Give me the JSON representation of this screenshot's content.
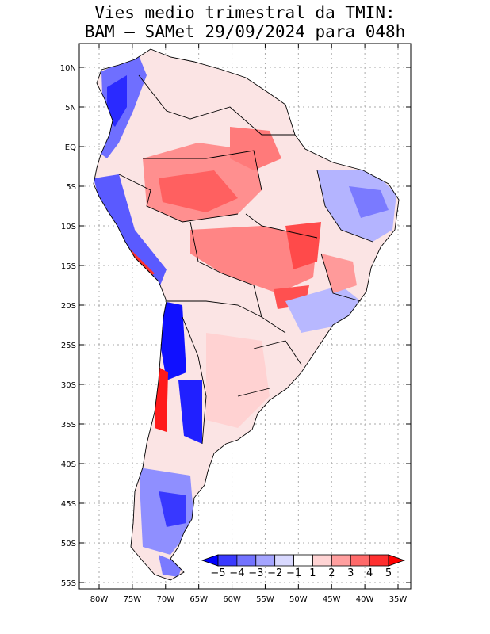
{
  "title": {
    "line1": "Vies medio trimestral da TMIN:",
    "line2": "BAM – SAMet 29/09/2024  para 048h"
  },
  "lat_ticks": [
    "10N",
    "5N",
    "EQ",
    "5S",
    "10S",
    "15S",
    "20S",
    "25S",
    "30S",
    "35S",
    "40S",
    "45S",
    "50S",
    "55S"
  ],
  "lon_ticks": [
    "80W",
    "75W",
    "70W",
    "65W",
    "60W",
    "55W",
    "50W",
    "45W",
    "40W",
    "35W"
  ],
  "colorbar": {
    "labels": [
      "−5",
      "−4",
      "−3",
      "−2",
      "−1",
      "1",
      "2",
      "3",
      "4",
      "5"
    ],
    "colors": [
      "#0000ff",
      "#3a3aff",
      "#7373ff",
      "#a5a5ff",
      "#d9d9ff",
      "#ffffff",
      "#ffd4d4",
      "#ff9f9f",
      "#ff6a6a",
      "#ff3030",
      "#ff0000"
    ]
  },
  "map": {
    "lon_range": [
      -83,
      -35
    ],
    "lat_range": [
      -56,
      13
    ],
    "palette": {
      "strong_blue": "#1010ff",
      "blue": "#6f6fff",
      "light_blue": "#c4c4ff",
      "pink": "#ffd0d0",
      "salmon": "#ff9a9a",
      "red": "#ff5050",
      "strong_red": "#ff1010"
    }
  }
}
